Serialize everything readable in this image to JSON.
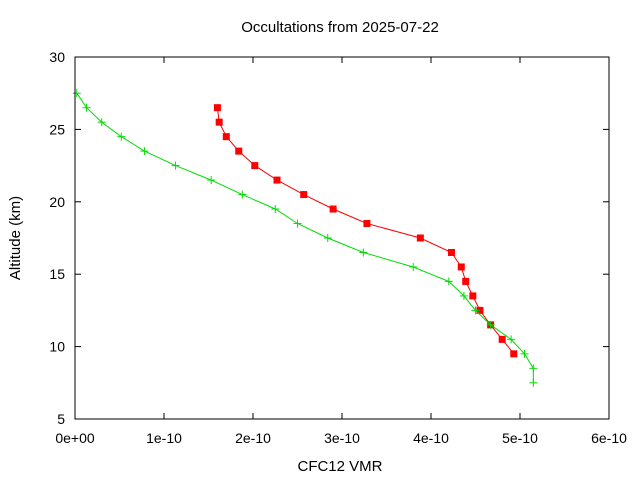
{
  "chart_data": {
    "type": "line",
    "title": "Occultations from 2025-07-22",
    "xlabel": "CFC12 VMR",
    "ylabel": "Altitude (km)",
    "xlim": [
      0,
      6e-10
    ],
    "ylim": [
      5,
      30
    ],
    "x_ticks": [
      0,
      1e-10,
      2e-10,
      3e-10,
      4e-10,
      5e-10,
      6e-10
    ],
    "x_tick_labels": [
      "0e+00",
      "1e-10",
      "2e-10",
      "3e-10",
      "4e-10",
      "5e-10",
      "6e-10"
    ],
    "y_ticks": [
      5,
      10,
      15,
      20,
      25,
      30
    ],
    "y_tick_labels": [
      "5",
      "10",
      "15",
      "20",
      "25",
      "30"
    ],
    "grid": false,
    "legend": "none",
    "series": [
      {
        "color": "#ff0000",
        "marker": "square",
        "points": [
          {
            "x": 1.6e-10,
            "y": 26.5
          },
          {
            "x": 1.62e-10,
            "y": 25.5
          },
          {
            "x": 1.7e-10,
            "y": 24.5
          },
          {
            "x": 1.84e-10,
            "y": 23.5
          },
          {
            "x": 2.02e-10,
            "y": 22.5
          },
          {
            "x": 2.27e-10,
            "y": 21.5
          },
          {
            "x": 2.57e-10,
            "y": 20.5
          },
          {
            "x": 2.9e-10,
            "y": 19.5
          },
          {
            "x": 3.28e-10,
            "y": 18.5
          },
          {
            "x": 3.88e-10,
            "y": 17.5
          },
          {
            "x": 4.23e-10,
            "y": 16.5
          },
          {
            "x": 4.34e-10,
            "y": 15.5
          },
          {
            "x": 4.39e-10,
            "y": 14.5
          },
          {
            "x": 4.47e-10,
            "y": 13.5
          },
          {
            "x": 4.55e-10,
            "y": 12.5
          },
          {
            "x": 4.67e-10,
            "y": 11.5
          },
          {
            "x": 4.8e-10,
            "y": 10.5
          },
          {
            "x": 4.93e-10,
            "y": 9.5
          }
        ]
      },
      {
        "color": "#00dd00",
        "marker": "plus",
        "points": [
          {
            "x": 2e-12,
            "y": 27.5
          },
          {
            "x": 1.3e-11,
            "y": 26.5
          },
          {
            "x": 3e-11,
            "y": 25.5
          },
          {
            "x": 5.2e-11,
            "y": 24.5
          },
          {
            "x": 7.8e-11,
            "y": 23.5
          },
          {
            "x": 1.13e-10,
            "y": 22.5
          },
          {
            "x": 1.53e-10,
            "y": 21.5
          },
          {
            "x": 1.88e-10,
            "y": 20.5
          },
          {
            "x": 2.25e-10,
            "y": 19.5
          },
          {
            "x": 2.5e-10,
            "y": 18.5
          },
          {
            "x": 2.84e-10,
            "y": 17.5
          },
          {
            "x": 3.24e-10,
            "y": 16.5
          },
          {
            "x": 3.8e-10,
            "y": 15.5
          },
          {
            "x": 4.2e-10,
            "y": 14.5
          },
          {
            "x": 4.37e-10,
            "y": 13.5
          },
          {
            "x": 4.5e-10,
            "y": 12.5
          },
          {
            "x": 4.67e-10,
            "y": 11.5
          },
          {
            "x": 4.9e-10,
            "y": 10.5
          },
          {
            "x": 5.05e-10,
            "y": 9.5
          },
          {
            "x": 5.15e-10,
            "y": 8.5
          },
          {
            "x": 5.15e-10,
            "y": 7.5
          }
        ]
      }
    ]
  }
}
